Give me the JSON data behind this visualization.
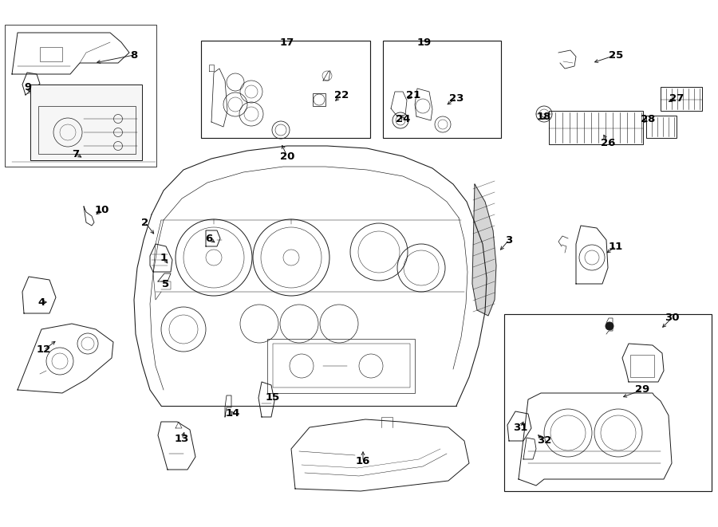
{
  "bg": "#ffffff",
  "lc": "#1a1a1a",
  "lw": 0.7,
  "fig_w": 9.0,
  "fig_h": 6.61,
  "dpi": 100,
  "labels": [
    [
      1,
      2.05,
      3.38,
      2.12,
      3.28
    ],
    [
      2,
      1.82,
      3.82,
      1.95,
      3.65
    ],
    [
      3,
      6.38,
      3.6,
      6.25,
      3.45
    ],
    [
      4,
      0.52,
      2.82,
      0.62,
      2.82
    ],
    [
      5,
      2.08,
      3.05,
      2.1,
      3.05
    ],
    [
      6,
      2.62,
      3.62,
      2.72,
      3.55
    ],
    [
      7,
      0.95,
      4.68,
      1.05,
      4.62
    ],
    [
      8,
      1.68,
      5.92,
      1.18,
      5.82
    ],
    [
      9,
      0.35,
      5.52,
      0.38,
      5.42
    ],
    [
      10,
      1.28,
      3.98,
      1.18,
      3.9
    ],
    [
      11,
      7.72,
      3.52,
      7.58,
      3.42
    ],
    [
      12,
      0.55,
      2.22,
      0.72,
      2.35
    ],
    [
      13,
      2.28,
      1.1,
      2.32,
      1.22
    ],
    [
      14,
      2.92,
      1.42,
      2.88,
      1.48
    ],
    [
      15,
      3.42,
      1.62,
      3.38,
      1.62
    ],
    [
      16,
      4.55,
      0.82,
      4.55,
      0.98
    ],
    [
      17,
      3.6,
      6.08,
      3.6,
      6.05
    ],
    [
      18,
      6.82,
      5.15,
      6.82,
      5.08
    ],
    [
      19,
      5.32,
      6.08,
      5.32,
      6.05
    ],
    [
      20,
      3.6,
      4.65,
      3.52,
      4.82
    ],
    [
      21,
      5.18,
      5.42,
      5.08,
      5.35
    ],
    [
      22,
      4.28,
      5.42,
      4.18,
      5.32
    ],
    [
      23,
      5.72,
      5.38,
      5.58,
      5.28
    ],
    [
      24,
      5.05,
      5.12,
      5.02,
      5.18
    ],
    [
      25,
      7.72,
      5.92,
      7.42,
      5.82
    ],
    [
      26,
      7.62,
      4.82,
      7.55,
      4.95
    ],
    [
      27,
      8.48,
      5.38,
      8.35,
      5.32
    ],
    [
      28,
      8.12,
      5.12,
      8.05,
      5.05
    ],
    [
      29,
      8.05,
      1.72,
      7.78,
      1.62
    ],
    [
      30,
      8.42,
      2.62,
      8.28,
      2.48
    ],
    [
      31,
      6.52,
      1.25,
      6.58,
      1.35
    ],
    [
      32,
      6.82,
      1.08,
      6.72,
      1.18
    ]
  ]
}
